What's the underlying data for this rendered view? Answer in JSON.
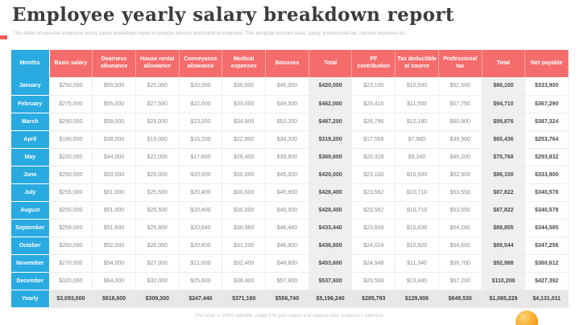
{
  "slide": {
    "title": "Employee yearly salary breakdown report",
    "subtitle": "This slides showcases employee yearly salary breakdown report to analyze amount distributed to employee. This template includes basic salary, professional tax, medical expenses etc.",
    "footer": "This slide is 100% editable. Adapt it to your needs and capture your audience's attention."
  },
  "colors": {
    "header_red": "#F56C6C",
    "months_blue": "#29ABE2",
    "total_column_bg": "#EFEFEF",
    "yearly_row_bg": "#E7E7E7",
    "accent_orange": "#F7A823",
    "accent_red": "#F15B5B"
  },
  "table": {
    "columns": [
      "Months",
      "Basic salary",
      "Dearness allowance",
      "House rental allowance",
      "Conveyance allowance",
      "Medical expenses",
      "Bonuses",
      "Total",
      "PF contribution",
      "Tax deductible at source",
      "Professional tax",
      "Total",
      "Net payable"
    ],
    "rows": [
      {
        "label": "January",
        "values": [
          "$250,000",
          "$50,000",
          "$25,000",
          "$20,000",
          "$30,000",
          "$45,000",
          "$420,000",
          "$23,100",
          "$10,500",
          "$52,500",
          "$86,100",
          "$333,900"
        ]
      },
      {
        "label": "February",
        "values": [
          "$275,000",
          "$55,000",
          "$27,500",
          "$22,000",
          "$33,000",
          "$49,500",
          "$462,000",
          "$25,410",
          "$11,550",
          "$57,750",
          "$94,710",
          "$367,290"
        ]
      },
      {
        "label": "March",
        "values": [
          "$290,000",
          "$58,000",
          "$29,000",
          "$23,200",
          "$34,800",
          "$52,200",
          "$487,200",
          "$26,796",
          "$12,180",
          "$60,900",
          "$99,876",
          "$387,324"
        ]
      },
      {
        "label": "April",
        "values": [
          "$190,000",
          "$38,000",
          "$19,000",
          "$15,200",
          "$22,800",
          "$34,200",
          "$319,200",
          "$17,556",
          "$7,980",
          "$39,900",
          "$65,436",
          "$253,764"
        ]
      },
      {
        "label": "May",
        "values": [
          "$220,000",
          "$44,000",
          "$22,000",
          "$17,600",
          "$26,400",
          "$39,600",
          "$369,600",
          "$20,328",
          "$9,240",
          "$46,200",
          "$75,768",
          "$293,832"
        ]
      },
      {
        "label": "June",
        "values": [
          "$250,000",
          "$50,000",
          "$25,000",
          "$20,000",
          "$30,000",
          "$45,000",
          "$420,000",
          "$23,100",
          "$10,500",
          "$52,500",
          "$86,100",
          "$333,900"
        ]
      },
      {
        "label": "July",
        "values": [
          "$255,000",
          "$51,000",
          "$25,500",
          "$20,400",
          "$30,600",
          "$45,900",
          "$428,400",
          "$23,562",
          "$10,710",
          "$53,550",
          "$87,822",
          "$340,578"
        ]
      },
      {
        "label": "August",
        "values": [
          "$255,000",
          "$51,000",
          "$25,500",
          "$20,400",
          "$30,600",
          "$45,900",
          "$428,400",
          "$23,562",
          "$10,710",
          "$53,550",
          "$87,822",
          "$340,578"
        ]
      },
      {
        "label": "September",
        "values": [
          "$258,000",
          "$51,600",
          "$25,800",
          "$20,640",
          "$30,960",
          "$46,440",
          "$433,440",
          "$23,839",
          "$10,836",
          "$54,180",
          "$88,855",
          "$344,585"
        ]
      },
      {
        "label": "October",
        "values": [
          "$260,000",
          "$52,000",
          "$26,000",
          "$20,800",
          "$31,200",
          "$46,800",
          "$436,800",
          "$24,024",
          "$10,920",
          "$54,600",
          "$89,544",
          "$347,256"
        ]
      },
      {
        "label": "November",
        "values": [
          "$270,000",
          "$54,000",
          "$27,000",
          "$21,600",
          "$32,400",
          "$48,600",
          "$453,600",
          "$24,948",
          "$11,340",
          "$56,700",
          "$92,988",
          "$360,612"
        ]
      },
      {
        "label": "December",
        "values": [
          "$320,000",
          "$64,000",
          "$32,000",
          "$25,600",
          "$38,400",
          "$57,600",
          "$537,600",
          "$29,568",
          "$13,440",
          "$67,200",
          "$110,208",
          "$427,392"
        ]
      },
      {
        "label": "Yearly",
        "values": [
          "$3,093,000",
          "$618,600",
          "$309,300",
          "$247,440",
          "$371,160",
          "$556,740",
          "$5,196,240",
          "$285,793",
          "$129,906",
          "$649,530",
          "$1,065,229",
          "$4,131,011"
        ]
      }
    ]
  }
}
